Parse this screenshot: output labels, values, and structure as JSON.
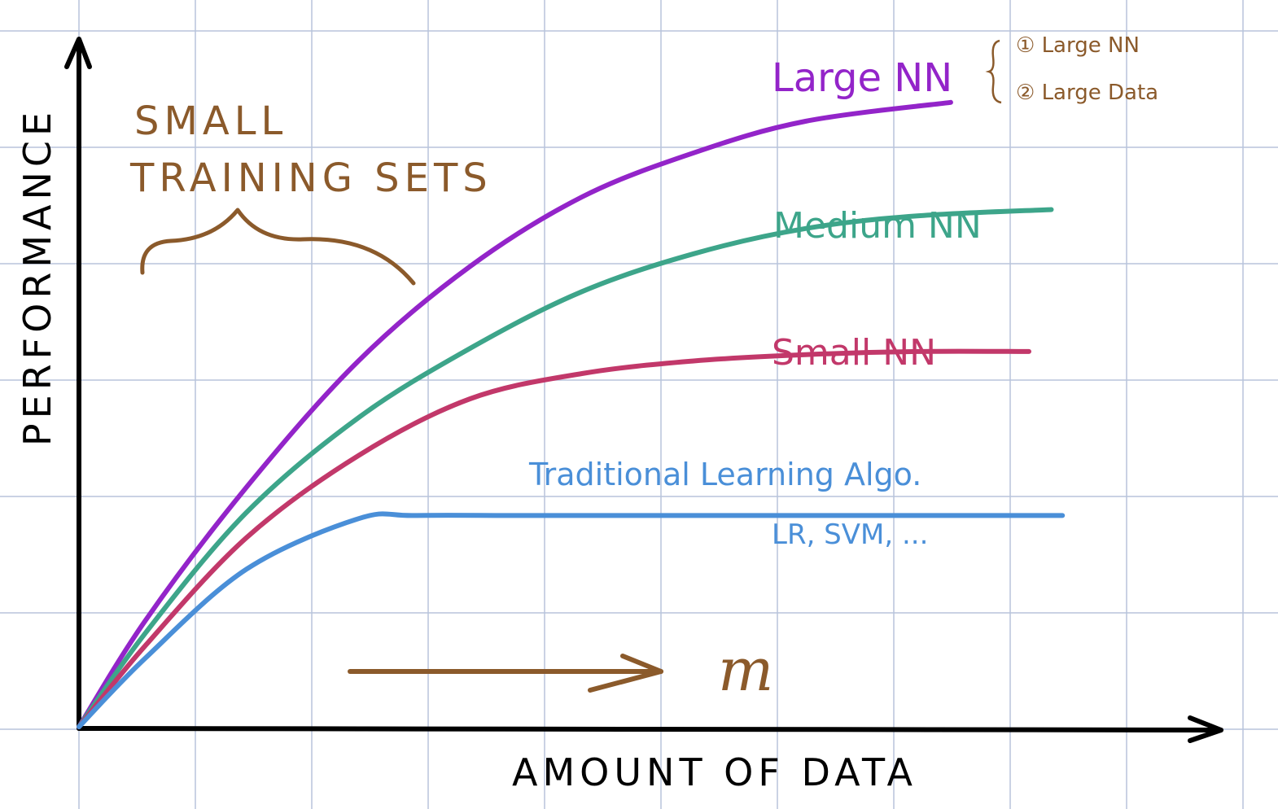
{
  "chart_data": {
    "type": "line",
    "title": "",
    "xlabel": "AMOUNT OF DATA",
    "ylabel": "PERFORMANCE",
    "xlim": [
      0,
      100
    ],
    "ylim": [
      0,
      100
    ],
    "grid": true,
    "series": [
      {
        "name": "Large NN",
        "color": "#9324c9",
        "x": [
          0,
          6,
          15,
          25,
          35,
          45,
          55,
          65,
          78
        ],
        "y": [
          0,
          17,
          38,
          58,
          73,
          84,
          91,
          96,
          99
        ]
      },
      {
        "name": "Medium NN",
        "color": "#3da58a",
        "x": [
          0,
          6,
          15,
          25,
          35,
          45,
          55,
          65,
          75,
          87
        ],
        "y": [
          0,
          15,
          34,
          49,
          60,
          69,
          75,
          79,
          81,
          82
        ]
      },
      {
        "name": "Small NN",
        "color": "#c2386a",
        "x": [
          0,
          6,
          15,
          25,
          35,
          45,
          55,
          65,
          75,
          85
        ],
        "y": [
          0,
          13,
          30,
          43,
          52,
          56,
          58,
          59,
          59.5,
          59.5
        ]
      },
      {
        "name": "Traditional Learning Algo.",
        "color": "#4a8fd8",
        "x": [
          0,
          6,
          15,
          25,
          30,
          40,
          55,
          70,
          88
        ],
        "y": [
          0,
          11,
          25,
          33,
          33.5,
          33.5,
          33.5,
          33.5,
          33.5
        ]
      }
    ],
    "annotations": {
      "small_sets_line1": "SMALL",
      "small_sets_line2": "TRAINING SETS",
      "trad_subtitle": "LR, SVM, ...",
      "m_symbol": "m",
      "note_1": "① Large NN",
      "note_2": "② Large Data"
    },
    "colors": {
      "annotation": "#8b5a2b",
      "grid": "#b8c4dc",
      "axis": "#000000"
    }
  }
}
